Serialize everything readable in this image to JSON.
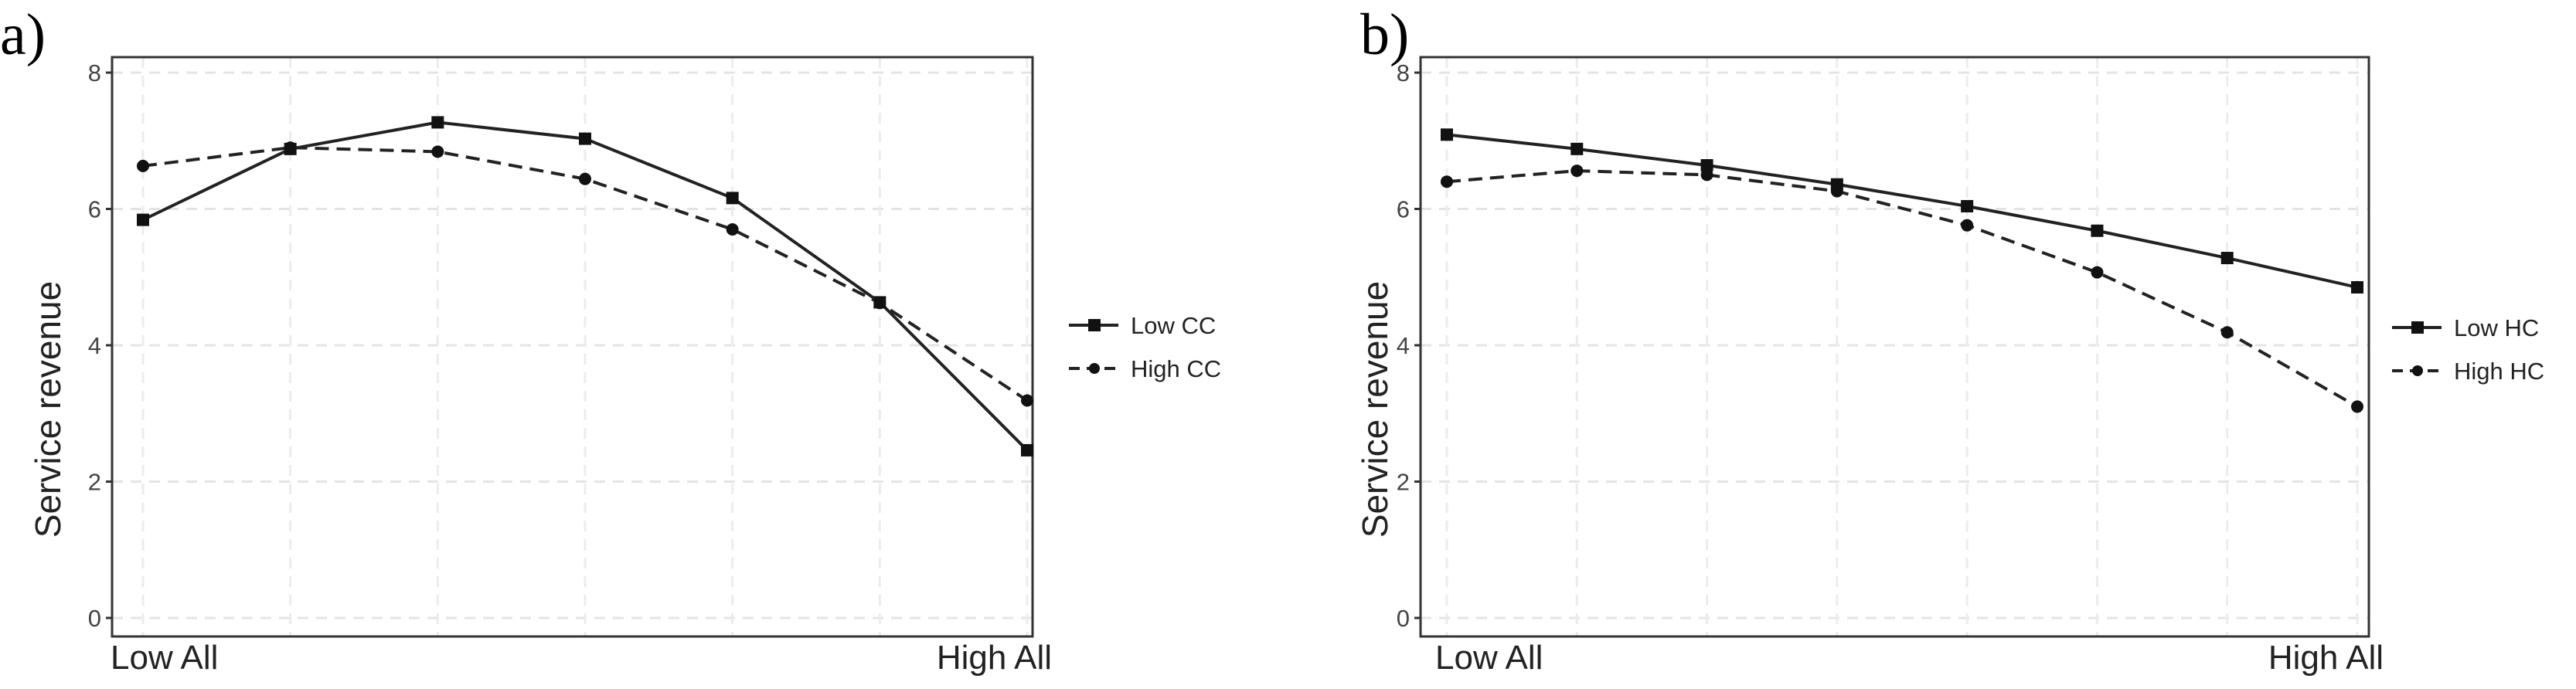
{
  "chart_data": [
    {
      "panel_label": "a)",
      "type": "line",
      "xlabel": "",
      "ylabel": "Service revenue",
      "x_tick_labels": [
        "Low All",
        "High All"
      ],
      "x": [
        1,
        2,
        3,
        4,
        5,
        6,
        7
      ],
      "ylim": [
        0,
        8
      ],
      "y_ticks": [
        0,
        2,
        4,
        6,
        8
      ],
      "grid": true,
      "legend_position": "right",
      "series": [
        {
          "name": "Low CC",
          "line_style": "solid",
          "marker": "square",
          "values": [
            5.84,
            6.88,
            7.27,
            7.03,
            6.16,
            4.63,
            2.46
          ]
        },
        {
          "name": "High CC",
          "line_style": "dashed",
          "marker": "circle",
          "values": [
            6.63,
            6.9,
            6.84,
            6.44,
            5.7,
            4.62,
            3.19
          ]
        }
      ]
    },
    {
      "panel_label": "b)",
      "type": "line",
      "xlabel": "",
      "ylabel": "Service revenue",
      "x_tick_labels": [
        "Low All",
        "High All"
      ],
      "x": [
        1,
        2,
        3,
        4,
        5,
        6,
        7,
        8
      ],
      "ylim": [
        0,
        8
      ],
      "y_ticks": [
        0,
        2,
        4,
        6,
        8
      ],
      "grid": true,
      "legend_position": "right",
      "series": [
        {
          "name": "Low HC",
          "line_style": "solid",
          "marker": "square",
          "values": [
            7.09,
            6.88,
            6.64,
            6.36,
            6.04,
            5.68,
            5.28,
            4.85
          ]
        },
        {
          "name": "High HC",
          "line_style": "dashed",
          "marker": "circle",
          "values": [
            6.4,
            6.56,
            6.5,
            6.26,
            5.76,
            5.07,
            4.19,
            3.1
          ]
        }
      ]
    }
  ]
}
